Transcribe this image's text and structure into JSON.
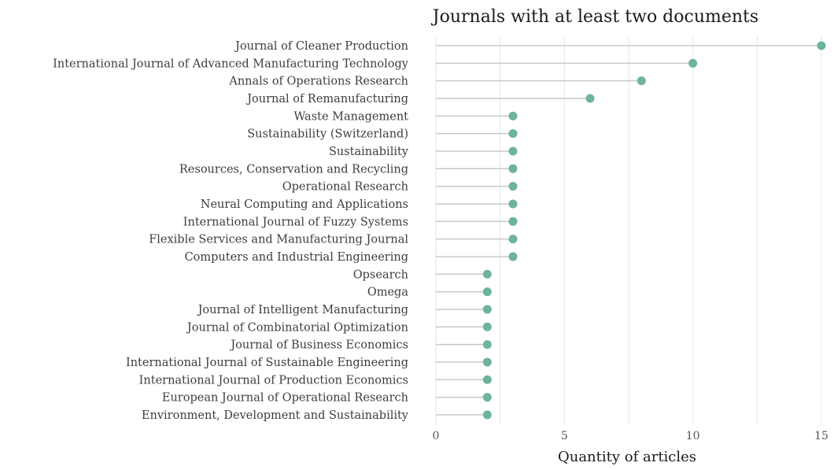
{
  "chart_data": {
    "type": "lollipop",
    "title": "Journals with at least two documents",
    "xlabel": "Quantity of articles",
    "ylabel": "",
    "xlim": [
      0,
      15
    ],
    "xticks": [
      0,
      5,
      10,
      15
    ],
    "grid": true,
    "color": "#6db39e",
    "categories": [
      "Journal of Cleaner Production",
      "International Journal of Advanced Manufacturing Technology",
      "Annals of Operations Research",
      "Journal of Remanufacturing",
      "Waste Management",
      "Sustainability (Switzerland)",
      "Sustainability",
      "Resources, Conservation and Recycling",
      "Operational Research",
      "Neural Computing and Applications",
      "International Journal of Fuzzy Systems",
      "Flexible Services and Manufacturing Journal",
      "Computers and Industrial Engineering",
      "Opsearch",
      "Omega",
      "Journal of Intelligent Manufacturing",
      "Journal of Combinatorial Optimization",
      "Journal of Business Economics",
      "International Journal of Sustainable Engineering",
      "International Journal of Production Economics",
      "European Journal of Operational Research",
      "Environment, Development and Sustainability"
    ],
    "values": [
      15,
      10,
      8,
      6,
      3,
      3,
      3,
      3,
      3,
      3,
      3,
      3,
      3,
      2,
      2,
      2,
      2,
      2,
      2,
      2,
      2,
      2
    ]
  }
}
